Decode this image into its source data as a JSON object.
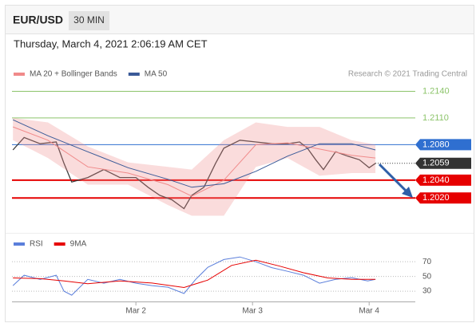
{
  "header": {
    "symbol": "EUR/USD",
    "interval": "30 MIN",
    "datetime": "Thursday, March 4, 2021 2:06:19 AM CET",
    "credit": "Research © 2021 Trading Central"
  },
  "chart_data": [
    {
      "type": "line",
      "xlim": [
        -25.5,
        57.5
      ],
      "ylim": [
        1.1987,
        1.2153
      ],
      "series": [
        {
          "color": "#3c3c3c",
          "x": [
            -25.3,
            -23,
            -19.7,
            -16.4,
            -14.8,
            -13.2,
            -9.9,
            -6.6,
            -3.3,
            0,
            2.5,
            4.9,
            7.4,
            9.9,
            11.5,
            14,
            16.4,
            18.1,
            21.4,
            24.7,
            28,
            31.2,
            33.7,
            35.3,
            37,
            38.6,
            41.1,
            43.6,
            46,
            48,
            49.3
          ],
          "values": [
            1.2074,
            1.2088,
            1.2081,
            1.2083,
            1.2059,
            1.2038,
            1.2043,
            1.2052,
            1.2043,
            1.2043,
            1.2032,
            1.2023,
            1.2018,
            1.2008,
            1.2023,
            1.2032,
            1.2059,
            1.2076,
            1.2085,
            1.2083,
            1.2081,
            1.2081,
            1.2083,
            1.2076,
            1.2063,
            1.2052,
            1.2072,
            1.2067,
            1.2063,
            1.2054,
            1.2059
          ]
        },
        {
          "name": "MA 20 + Bollinger Bands",
          "color": "#f08a8a",
          "x": [
            -25.3,
            -18.1,
            -9.9,
            -1.6,
            6.6,
            11.5,
            18.1,
            24.7,
            31.2,
            37.8,
            44.4,
            49.3
          ],
          "values": [
            1.21,
            1.2085,
            1.2055,
            1.2048,
            1.2035,
            1.2022,
            1.204,
            1.208,
            1.2082,
            1.2075,
            1.2068,
            1.2065
          ],
          "upper": [
            1.211,
            1.2105,
            1.2078,
            1.206,
            1.2055,
            1.2052,
            1.2085,
            1.2105,
            1.21,
            1.21,
            1.2085,
            1.208
          ],
          "lower": [
            1.2085,
            1.2065,
            1.2035,
            1.2035,
            1.2012,
            1.2,
            1.2,
            1.2055,
            1.2065,
            1.2045,
            1.2048,
            1.2048
          ]
        },
        {
          "name": "MA 50",
          "color": "#3a5a98",
          "x": [
            -25.3,
            -18.1,
            -9.9,
            -1.6,
            6.6,
            11.5,
            18.1,
            24.7,
            31.2,
            37.8,
            44.4,
            49.3
          ],
          "values": [
            1.2108,
            1.209,
            1.2072,
            1.2054,
            1.2041,
            1.2032,
            1.2036,
            1.205,
            1.2067,
            1.2081,
            1.2081,
            1.2074
          ]
        }
      ],
      "levels": [
        {
          "value": 1.214,
          "label": "1.2140",
          "color": "#8cc46a",
          "box": false
        },
        {
          "value": 1.211,
          "label": "1.2110",
          "color": "#8cc46a",
          "box": false
        },
        {
          "value": 1.208,
          "label": "1.2080",
          "color": "#2f6fd0",
          "box": true
        },
        {
          "value": 1.2059,
          "label": "1.2059",
          "color": "#333333",
          "box": true,
          "dotted": true
        },
        {
          "value": 1.204,
          "label": "1.2040",
          "color": "#e60000",
          "box": true
        },
        {
          "value": 1.202,
          "label": "1.2020",
          "color": "#e60000",
          "box": true
        }
      ]
    },
    {
      "type": "line",
      "xlim": [
        -25.5,
        57.5
      ],
      "ylim": [
        16,
        81
      ],
      "yticks": [
        70,
        50,
        30
      ],
      "xticks": [
        {
          "value": 0,
          "label": "Mar 2"
        },
        {
          "value": 24,
          "label": "Mar 3"
        },
        {
          "value": 48,
          "label": "Mar 4"
        }
      ],
      "series": [
        {
          "name": "RSI",
          "color": "#5b7fdb",
          "x": [
            -25.3,
            -23,
            -19.7,
            -16.4,
            -14.8,
            -13.2,
            -9.9,
            -6.6,
            -3.3,
            0,
            3.3,
            6.6,
            9.9,
            12.3,
            14.8,
            18.1,
            21.4,
            24.7,
            27.9,
            31.2,
            34.5,
            37.8,
            41.1,
            44.4,
            47.7,
            49.3
          ],
          "values": [
            37.6,
            51.6,
            46,
            51.6,
            30,
            24.6,
            46,
            40.8,
            46,
            40.8,
            37.6,
            35.4,
            26.8,
            46,
            62.4,
            73,
            76.5,
            70,
            62,
            57,
            51.6,
            40.8,
            46,
            48.4,
            44,
            46
          ]
        },
        {
          "name": "9MA",
          "color": "#e60000",
          "x": [
            -25.3,
            -19.7,
            -14.8,
            -9.9,
            -3.3,
            3.3,
            9.9,
            14.8,
            19.7,
            24.7,
            29.6,
            34.5,
            39.5,
            44.4,
            49.3
          ],
          "values": [
            48,
            47,
            44,
            40,
            44,
            41,
            35,
            45,
            65,
            72,
            64,
            55,
            48,
            46,
            46
          ]
        }
      ]
    }
  ]
}
